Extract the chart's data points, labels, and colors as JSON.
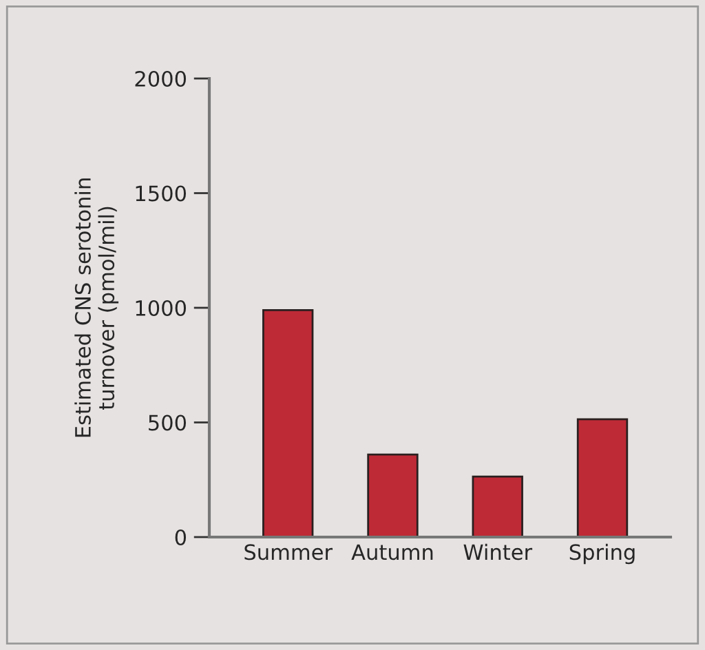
{
  "chart_data": {
    "type": "bar",
    "ylabel": "Estimated CNS serotonin\nturnover (pmol/mil)",
    "categories": [
      "Summer",
      "Autumn",
      "Winter",
      "Spring"
    ],
    "values": [
      990,
      360,
      264,
      514
    ],
    "color": "#be2a36",
    "ylim": [
      0,
      2000
    ],
    "yticks": [
      0,
      500,
      1000,
      1500,
      2000
    ],
    "grid": false
  }
}
